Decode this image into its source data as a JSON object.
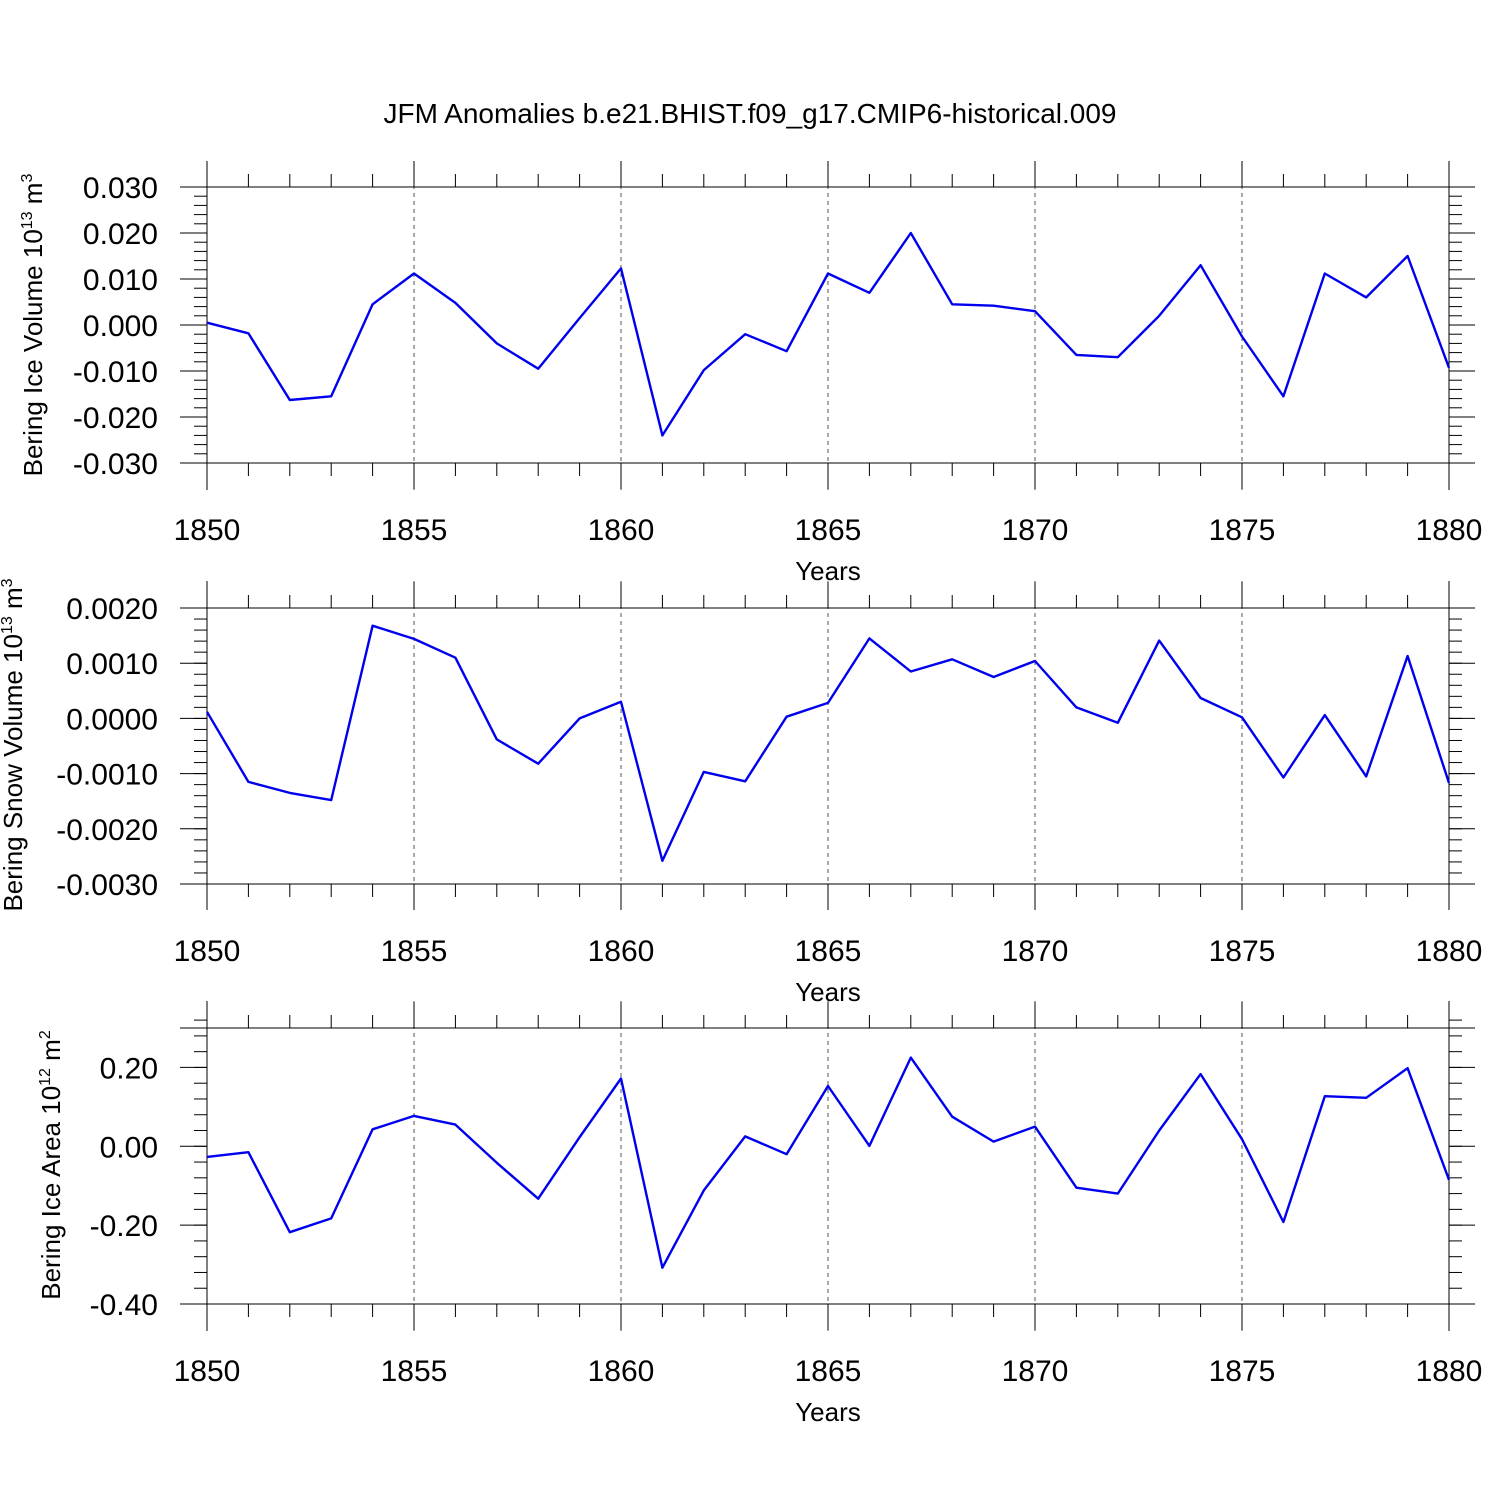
{
  "title": "JFM Anomalies b.e21.BHIST.f09_g17.CMIP6-historical.009",
  "colors": {
    "line": "#0000ee",
    "axis": "#000000",
    "grid": "#555555"
  },
  "chart_data": [
    {
      "type": "line",
      "id": "ice-volume",
      "ylabel_main": "Bering Ice Volume 10",
      "ylabel_exp": "13",
      "ylabel_unit": " m",
      "ylabel_unit_exp": "3",
      "xlabel": "Years",
      "xlim": [
        1850,
        1880
      ],
      "ylim": [
        -0.03,
        0.03
      ],
      "yticks": [
        -0.03,
        -0.02,
        -0.01,
        0.0,
        0.01,
        0.02,
        0.03
      ],
      "ytick_labels": [
        "-0.030",
        "-0.020",
        "-0.010",
        "0.000",
        "0.010",
        "0.020",
        "0.030"
      ],
      "yminor_step": 0.002,
      "xticks": [
        1850,
        1855,
        1860,
        1865,
        1870,
        1875,
        1880
      ],
      "xtick_labels": [
        "1850",
        "1855",
        "1860",
        "1865",
        "1870",
        "1875",
        "1880"
      ],
      "x": [
        1850,
        1851,
        1852,
        1853,
        1854,
        1855,
        1856,
        1857,
        1858,
        1859,
        1860,
        1861,
        1862,
        1863,
        1864,
        1865,
        1866,
        1867,
        1868,
        1869,
        1870,
        1871,
        1872,
        1873,
        1874,
        1875,
        1876,
        1877,
        1878,
        1879,
        1880
      ],
      "values": [
        0.0005,
        -0.0018,
        -0.0163,
        -0.0155,
        0.0045,
        0.0112,
        0.0048,
        -0.004,
        -0.0095,
        0.0015,
        0.0123,
        -0.024,
        -0.0098,
        -0.002,
        -0.0057,
        0.0112,
        0.007,
        0.02,
        0.0045,
        0.0042,
        0.003,
        -0.0065,
        -0.007,
        0.002,
        0.013,
        -0.0025,
        -0.0155,
        0.0112,
        0.006,
        0.015,
        -0.0093
      ]
    },
    {
      "type": "line",
      "id": "snow-volume",
      "ylabel_main": "Bering Snow Volume 10",
      "ylabel_exp": "13",
      "ylabel_unit": " m",
      "ylabel_unit_exp": "3",
      "xlabel": "Years",
      "xlim": [
        1850,
        1880
      ],
      "ylim": [
        -0.003,
        0.002
      ],
      "yticks": [
        -0.003,
        -0.002,
        -0.001,
        0.0,
        0.001,
        0.002
      ],
      "ytick_labels": [
        "-0.0030",
        "-0.0020",
        "-0.0010",
        "0.0000",
        "0.0010",
        "0.0020"
      ],
      "yminor_step": 0.0002,
      "xticks": [
        1850,
        1855,
        1860,
        1865,
        1870,
        1875,
        1880
      ],
      "xtick_labels": [
        "1850",
        "1855",
        "1860",
        "1865",
        "1870",
        "1875",
        "1880"
      ],
      "x": [
        1850,
        1851,
        1852,
        1853,
        1854,
        1855,
        1856,
        1857,
        1858,
        1859,
        1860,
        1861,
        1862,
        1863,
        1864,
        1865,
        1866,
        1867,
        1868,
        1869,
        1870,
        1871,
        1872,
        1873,
        1874,
        1875,
        1876,
        1877,
        1878,
        1879,
        1880
      ],
      "values": [
        0.00012,
        -0.00115,
        -0.00135,
        -0.00148,
        0.00168,
        0.00144,
        0.0011,
        -0.00038,
        -0.00082,
        0.0,
        0.0003,
        -0.00258,
        -0.00097,
        -0.00114,
        3e-05,
        0.00028,
        0.00145,
        0.00085,
        0.00107,
        0.00075,
        0.00104,
        0.0002,
        -8e-05,
        0.00141,
        0.00037,
        2e-05,
        -0.00107,
        6e-05,
        -0.00105,
        0.00113,
        -0.00117
      ]
    },
    {
      "type": "line",
      "id": "ice-area",
      "ylabel_main": "Bering Ice Area 10",
      "ylabel_exp": "12",
      "ylabel_unit": " m",
      "ylabel_unit_exp": "2",
      "xlabel": "Years",
      "xlim": [
        1850,
        1880
      ],
      "ylim": [
        -0.4,
        0.3
      ],
      "yticks": [
        -0.4,
        -0.2,
        0.0,
        0.2
      ],
      "ytick_labels": [
        "-0.40",
        "-0.20",
        "0.00",
        "0.20"
      ],
      "yminor_step": 0.04,
      "xticks": [
        1850,
        1855,
        1860,
        1865,
        1870,
        1875,
        1880
      ],
      "xtick_labels": [
        "1850",
        "1855",
        "1860",
        "1865",
        "1870",
        "1875",
        "1880"
      ],
      "x": [
        1850,
        1851,
        1852,
        1853,
        1854,
        1855,
        1856,
        1857,
        1858,
        1859,
        1860,
        1861,
        1862,
        1863,
        1864,
        1865,
        1866,
        1867,
        1868,
        1869,
        1870,
        1871,
        1872,
        1873,
        1874,
        1875,
        1876,
        1877,
        1878,
        1879,
        1880
      ],
      "values": [
        -0.027,
        -0.015,
        -0.218,
        -0.183,
        0.043,
        0.077,
        0.055,
        -0.042,
        -0.133,
        0.023,
        0.172,
        -0.308,
        -0.112,
        0.025,
        -0.02,
        0.153,
        0.001,
        0.225,
        0.075,
        0.012,
        0.05,
        -0.105,
        -0.12,
        0.04,
        0.183,
        0.018,
        -0.192,
        0.127,
        0.123,
        0.198,
        -0.085
      ]
    }
  ]
}
